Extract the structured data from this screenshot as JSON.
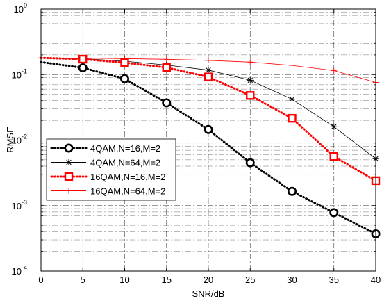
{
  "chart_data": {
    "type": "line",
    "xlabel": "SNR/dB",
    "ylabel": "RMSE",
    "xlim": [
      0,
      40
    ],
    "ylim": [
      0.0001,
      1
    ],
    "yscale": "log",
    "xticks": [
      "0",
      "5",
      "10",
      "15",
      "20",
      "25",
      "30",
      "35",
      "40"
    ],
    "yticks": [
      {
        "base": "10",
        "exp": "-4"
      },
      {
        "base": "10",
        "exp": "-3"
      },
      {
        "base": "10",
        "exp": "-2"
      },
      {
        "base": "10",
        "exp": "-1"
      },
      {
        "base": "10",
        "exp": "0"
      }
    ],
    "grid": true,
    "legend_position": "lower-left",
    "series": [
      {
        "name": "4QAM,N=16,M=2",
        "color": "#000000",
        "style": "dotted",
        "marker": "circle",
        "x": [
          0,
          5,
          10,
          15,
          20,
          25,
          30,
          35,
          40
        ],
        "y": [
          0.155,
          0.127,
          0.086,
          0.037,
          0.0145,
          0.0045,
          0.00165,
          0.00078,
          0.00037
        ]
      },
      {
        "name": "4QAM,N=64,M=2",
        "color": "#000000",
        "style": "solid",
        "marker": "star",
        "x": [
          0,
          5,
          10,
          15,
          20,
          25,
          30,
          35,
          40
        ],
        "y": [
          0.178,
          0.175,
          0.16,
          0.14,
          0.117,
          0.082,
          0.042,
          0.016,
          0.0052
        ]
      },
      {
        "name": "16QAM,N=16,M=2",
        "color": "#ff0000",
        "style": "dotted",
        "marker": "square",
        "x": [
          0,
          5,
          10,
          15,
          20,
          25,
          30,
          35,
          40
        ],
        "y": [
          0.18,
          0.172,
          0.152,
          0.128,
          0.092,
          0.048,
          0.0215,
          0.0056,
          0.0024
        ]
      },
      {
        "name": "16QAM,N=64,M=2",
        "color": "#ff0000",
        "style": "solid",
        "marker": "plus",
        "x": [
          0,
          5,
          10,
          15,
          20,
          25,
          30,
          35,
          40
        ],
        "y": [
          0.18,
          0.178,
          0.175,
          0.171,
          0.165,
          0.155,
          0.138,
          0.115,
          0.076
        ]
      }
    ]
  }
}
